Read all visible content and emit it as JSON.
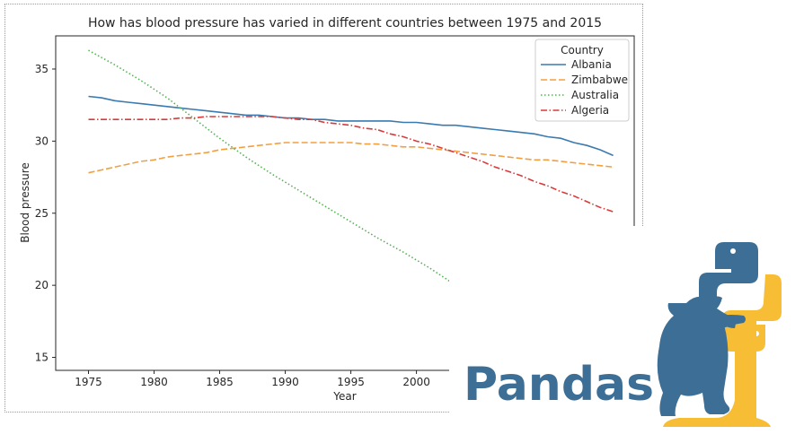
{
  "chart_data": {
    "type": "line",
    "title": "How has blood pressure has varied in different countries between 1975 and 2015",
    "xlabel": "Year",
    "ylabel": "Blood pressure",
    "xticks": [
      "1975",
      "1980",
      "1985",
      "1990",
      "1995",
      "2000"
    ],
    "yticks": [
      "15",
      "20",
      "25",
      "30",
      "35"
    ],
    "xlim": [
      1972.5,
      2016.6
    ],
    "ylim": [
      14.1,
      37.3
    ],
    "grid": false,
    "legend": {
      "title": "Country",
      "placement": "top-right"
    },
    "series": [
      {
        "name": "Albania",
        "color": "#3a7ab0",
        "style": "solid",
        "x": [
          1975,
          1976,
          1977,
          1978,
          1979,
          1980,
          1981,
          1982,
          1983,
          1984,
          1985,
          1986,
          1987,
          1988,
          1989,
          1990,
          1991,
          1992,
          1993,
          1994,
          1995,
          1996,
          1997,
          1998,
          1999,
          2000,
          2001,
          2002,
          2003,
          2004,
          2005,
          2006,
          2007,
          2008,
          2009,
          2010,
          2011,
          2012,
          2013,
          2014,
          2015
        ],
        "values": [
          33.1,
          33.0,
          32.8,
          32.7,
          32.6,
          32.5,
          32.4,
          32.3,
          32.2,
          32.1,
          32.0,
          31.9,
          31.8,
          31.8,
          31.7,
          31.6,
          31.6,
          31.5,
          31.5,
          31.4,
          31.4,
          31.4,
          31.4,
          31.4,
          31.3,
          31.3,
          31.2,
          31.1,
          31.1,
          31.0,
          30.9,
          30.8,
          30.7,
          30.6,
          30.5,
          30.3,
          30.2,
          29.9,
          29.7,
          29.4,
          29.0
        ]
      },
      {
        "name": "Zimbabwe",
        "color": "#f29f42",
        "style": "dashed",
        "x": [
          1975,
          1976,
          1977,
          1978,
          1979,
          1980,
          1981,
          1982,
          1983,
          1984,
          1985,
          1986,
          1987,
          1988,
          1989,
          1990,
          1991,
          1992,
          1993,
          1994,
          1995,
          1996,
          1997,
          1998,
          1999,
          2000,
          2001,
          2002,
          2003,
          2004,
          2005,
          2006,
          2007,
          2008,
          2009,
          2010,
          2011,
          2012,
          2013,
          2014,
          2015
        ],
        "values": [
          27.8,
          28.0,
          28.2,
          28.4,
          28.6,
          28.7,
          28.9,
          29.0,
          29.1,
          29.2,
          29.4,
          29.5,
          29.6,
          29.7,
          29.8,
          29.9,
          29.9,
          29.9,
          29.9,
          29.9,
          29.9,
          29.8,
          29.8,
          29.7,
          29.6,
          29.6,
          29.5,
          29.4,
          29.3,
          29.2,
          29.1,
          29.0,
          28.9,
          28.8,
          28.7,
          28.7,
          28.6,
          28.5,
          28.4,
          28.3,
          28.2
        ]
      },
      {
        "name": "Australia",
        "color": "#54b354",
        "style": "dotted",
        "x": [
          1975,
          1977,
          1979,
          1981,
          1983,
          1985,
          1987,
          1989,
          1991,
          1993,
          1995,
          1997,
          1999,
          2001,
          2003
        ],
        "values": [
          36.3,
          35.3,
          34.2,
          33.0,
          31.6,
          30.2,
          28.9,
          27.7,
          26.6,
          25.5,
          24.4,
          23.3,
          22.3,
          21.2,
          20.0
        ]
      },
      {
        "name": "Algeria",
        "color": "#d93b3b",
        "style": "dashdot",
        "x": [
          1975,
          1976,
          1977,
          1978,
          1979,
          1980,
          1981,
          1982,
          1983,
          1984,
          1985,
          1986,
          1987,
          1988,
          1989,
          1990,
          1991,
          1992,
          1993,
          1994,
          1995,
          1996,
          1997,
          1998,
          1999,
          2000,
          2001,
          2002,
          2003,
          2004,
          2005,
          2006,
          2007,
          2008,
          2009,
          2010,
          2011,
          2012,
          2013,
          2014,
          2015
        ],
        "values": [
          31.5,
          31.5,
          31.5,
          31.5,
          31.5,
          31.5,
          31.5,
          31.6,
          31.6,
          31.7,
          31.7,
          31.7,
          31.7,
          31.7,
          31.7,
          31.6,
          31.5,
          31.5,
          31.3,
          31.2,
          31.1,
          30.9,
          30.8,
          30.5,
          30.3,
          30.0,
          29.8,
          29.5,
          29.2,
          28.9,
          28.6,
          28.2,
          27.9,
          27.6,
          27.2,
          26.9,
          26.5,
          26.2,
          25.8,
          25.4,
          25.1
        ]
      }
    ]
  },
  "branding": {
    "text": "Pandas",
    "text_color": "#3d6f96",
    "bear_color": "#3d6f96",
    "yellow_color": "#f7bd35",
    "logo_icon": "python-logo-icon",
    "bear_icon": "bear-icon"
  }
}
